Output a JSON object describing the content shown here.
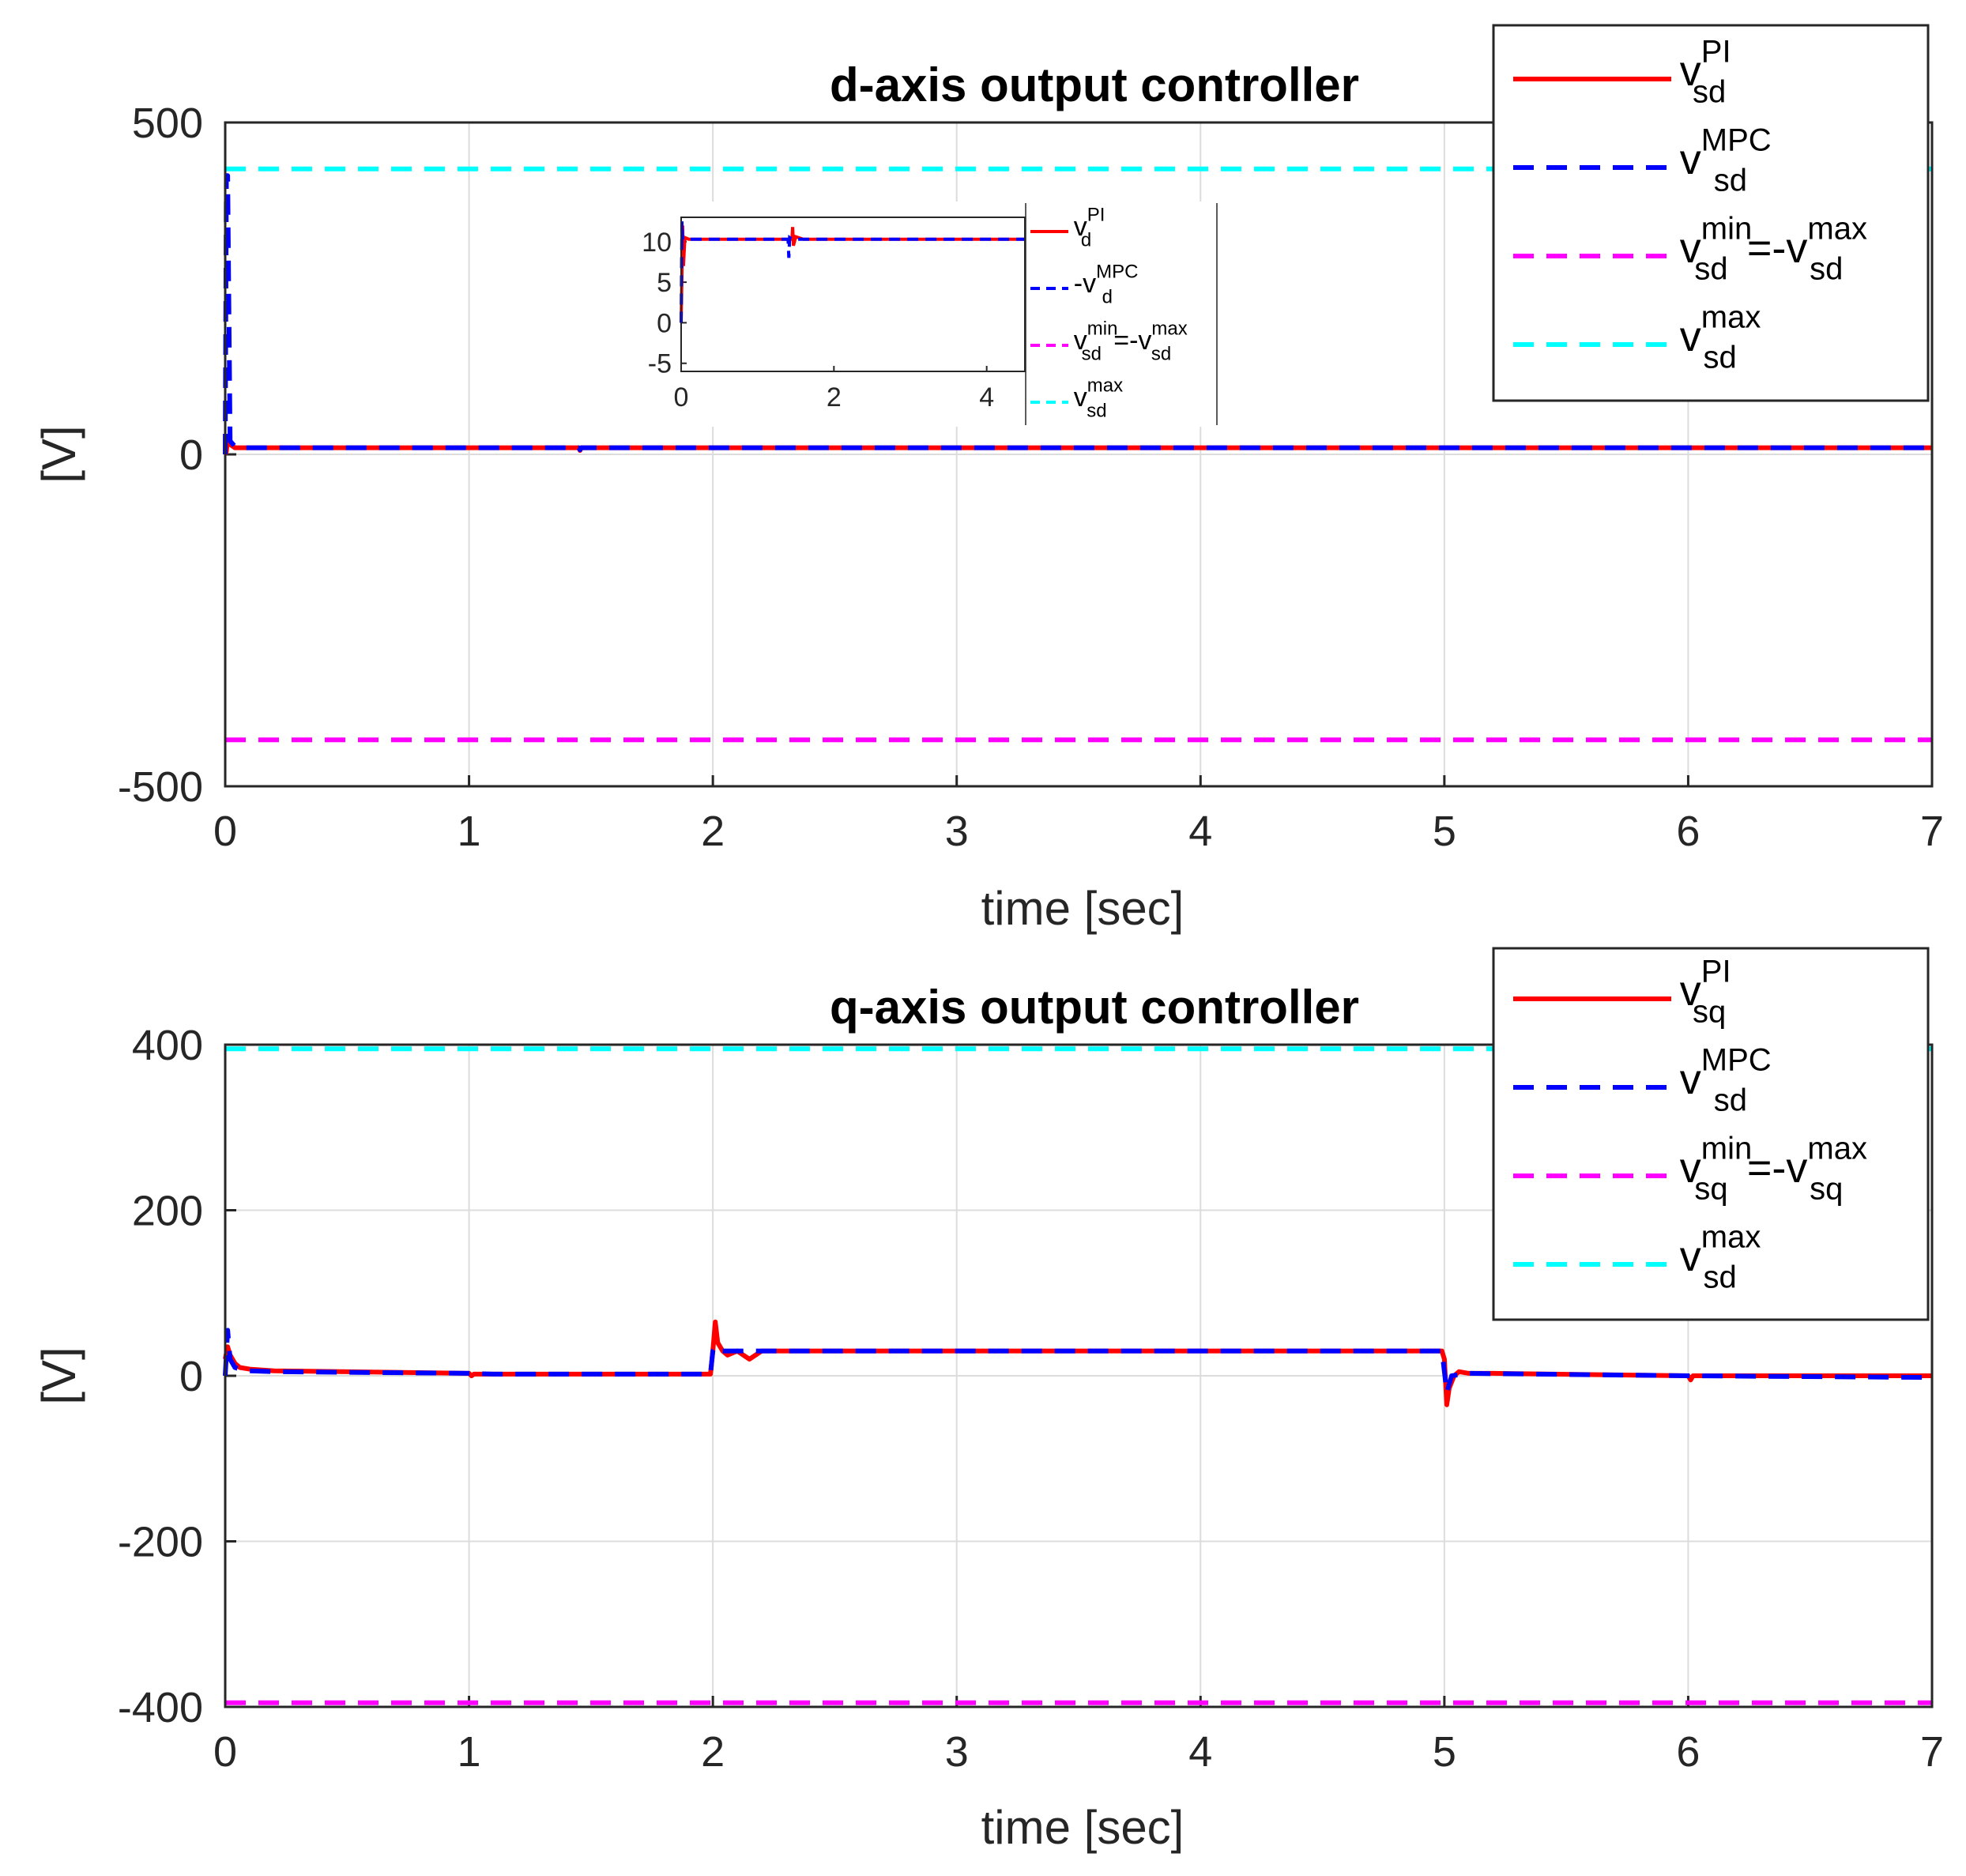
{
  "chart_data": [
    {
      "type": "line",
      "title": "d-axis output controller",
      "xlabel": "time [sec]",
      "ylabel": "[V]",
      "xlim": [
        0,
        7
      ],
      "ylim": [
        -500,
        500
      ],
      "xticks": [
        "0",
        "1",
        "2",
        "3",
        "4",
        "5",
        "6",
        "7"
      ],
      "yticks": [
        "-500",
        "0",
        "500"
      ],
      "grid": true,
      "legend_position": "top-right",
      "series": [
        {
          "name_main": "v",
          "name_sup": "PI",
          "name_sub": "sd",
          "color": "#ff0000",
          "style": "solid",
          "x": [
            0,
            0.005,
            0.01,
            0.02,
            0.04,
            0.08,
            1.45,
            1.455,
            1.46,
            7
          ],
          "y": [
            0,
            5,
            25,
            15,
            10,
            10,
            10,
            6,
            10,
            10
          ]
        },
        {
          "name_main": "v",
          "name_sup": "MPC",
          "name_sub": "sd",
          "color": "#0000ff",
          "style": "dashed",
          "x": [
            0,
            0.005,
            0.01,
            0.02,
            0.04,
            0.08,
            1.45,
            1.455,
            1.46,
            7
          ],
          "y": [
            0,
            420,
            420,
            20,
            12,
            10,
            10,
            7,
            10,
            10
          ]
        },
        {
          "name_main": "v",
          "name_sup": "min",
          "name_sub": "sd",
          "name_rest": "=-v",
          "name_sup2": "max",
          "name_sub2": "sd",
          "color": "#ff00ff",
          "style": "dashed",
          "x": [
            0,
            7
          ],
          "y": [
            -430,
            -430
          ]
        },
        {
          "name_main": "v",
          "name_sup": "max",
          "name_sub": "sd",
          "color": "#00ffff",
          "style": "dashed",
          "x": [
            0,
            7
          ],
          "y": [
            430,
            430
          ]
        }
      ],
      "inset": {
        "xlim": [
          0,
          4.5
        ],
        "ylim": [
          -6,
          13
        ],
        "xticks": [
          "0",
          "2",
          "4"
        ],
        "yticks": [
          "-5",
          "0",
          "5",
          "10"
        ],
        "series": [
          {
            "name_main": "v",
            "name_sup": "PI",
            "name_sub": "d",
            "color": "#ff0000",
            "style": "solid",
            "x": [
              0,
              0.01,
              0.02,
              0.03,
              0.05,
              0.1,
              1.45,
              1.46,
              1.47,
              1.5,
              1.6,
              4.5
            ],
            "y": [
              0,
              6,
              12,
              7,
              10.5,
              10.3,
              10.3,
              11.8,
              9.5,
              10.6,
              10.3,
              10.3
            ]
          },
          {
            "name_main": "-v",
            "name_sup": "MPC",
            "name_sub": "d",
            "color": "#0000ff",
            "style": "dashed",
            "x": [
              0,
              0.01,
              0.02,
              0.05,
              0.1,
              1.4,
              1.41,
              1.42,
              1.45,
              4.5
            ],
            "y": [
              0,
              12.5,
              10.3,
              10.3,
              10.3,
              10.3,
              8,
              10.5,
              10.3,
              10.3
            ]
          },
          {
            "name_main": "v",
            "name_sup": "min",
            "name_sub": "sd",
            "name_rest": "=-v",
            "name_sup2": "max",
            "name_sub2": "sd",
            "color": "#ff00ff",
            "style": "dashed",
            "x": [],
            "y": []
          },
          {
            "name_main": "v",
            "name_sup": "max",
            "name_sub": "sd",
            "color": "#00ffff",
            "style": "dashed",
            "x": [],
            "y": []
          }
        ]
      }
    },
    {
      "type": "line",
      "title": "q-axis output controller",
      "xlabel": "time [sec]",
      "ylabel": "[V]",
      "xlim": [
        0,
        7
      ],
      "ylim": [
        -400,
        400
      ],
      "xticks": [
        "0",
        "1",
        "2",
        "3",
        "4",
        "5",
        "6",
        "7"
      ],
      "yticks": [
        "-400",
        "-200",
        "0",
        "200",
        "400"
      ],
      "grid": true,
      "legend_position": "top-right",
      "series": [
        {
          "name_main": "v",
          "name_sup": "PI",
          "name_sub": "sq",
          "color": "#ff0000",
          "style": "solid",
          "x": [
            0,
            0.01,
            0.02,
            0.04,
            0.06,
            0.1,
            0.2,
            1.0,
            1.01,
            1.02,
            1.1,
            1.99,
            2.0,
            2.01,
            2.02,
            2.04,
            2.06,
            2.1,
            2.15,
            2.2,
            2.5,
            4.99,
            5.0,
            5.01,
            5.02,
            5.04,
            5.06,
            5.1,
            5.2,
            6.0,
            6.01,
            6.02,
            7
          ],
          "y": [
            20,
            35,
            25,
            15,
            10,
            8,
            6,
            3,
            0,
            2,
            2,
            2,
            30,
            65,
            40,
            30,
            25,
            30,
            20,
            30,
            30,
            30,
            20,
            -35,
            -15,
            0,
            5,
            3,
            3,
            0,
            -5,
            0,
            0
          ]
        },
        {
          "name_main": "v",
          "name_sup": "MPC",
          "name_sub": "sd",
          "color": "#0000ff",
          "style": "dashed",
          "x": [
            0,
            0.01,
            0.02,
            0.04,
            0.06,
            0.1,
            0.2,
            1.0,
            1.1,
            1.99,
            2.0,
            2.01,
            2.03,
            2.1,
            2.2,
            4.99,
            5.0,
            5.01,
            5.03,
            5.1,
            6.0,
            7
          ],
          "y": [
            0,
            55,
            20,
            10,
            8,
            6,
            5,
            3,
            2,
            2,
            30,
            35,
            30,
            30,
            30,
            30,
            5,
            -20,
            0,
            3,
            0,
            -2
          ]
        },
        {
          "name_main": "v",
          "name_sup": "min",
          "name_sub": "sq",
          "name_rest": "=-v",
          "name_sup2": "max",
          "name_sub2": "sq",
          "color": "#ff00ff",
          "style": "dashed",
          "x": [
            0,
            7
          ],
          "y": [
            -395,
            -395
          ]
        },
        {
          "name_main": "v",
          "name_sup": "max",
          "name_sub": "sd",
          "color": "#00ffff",
          "style": "dashed",
          "x": [
            0,
            7
          ],
          "y": [
            395,
            395
          ]
        }
      ]
    }
  ]
}
